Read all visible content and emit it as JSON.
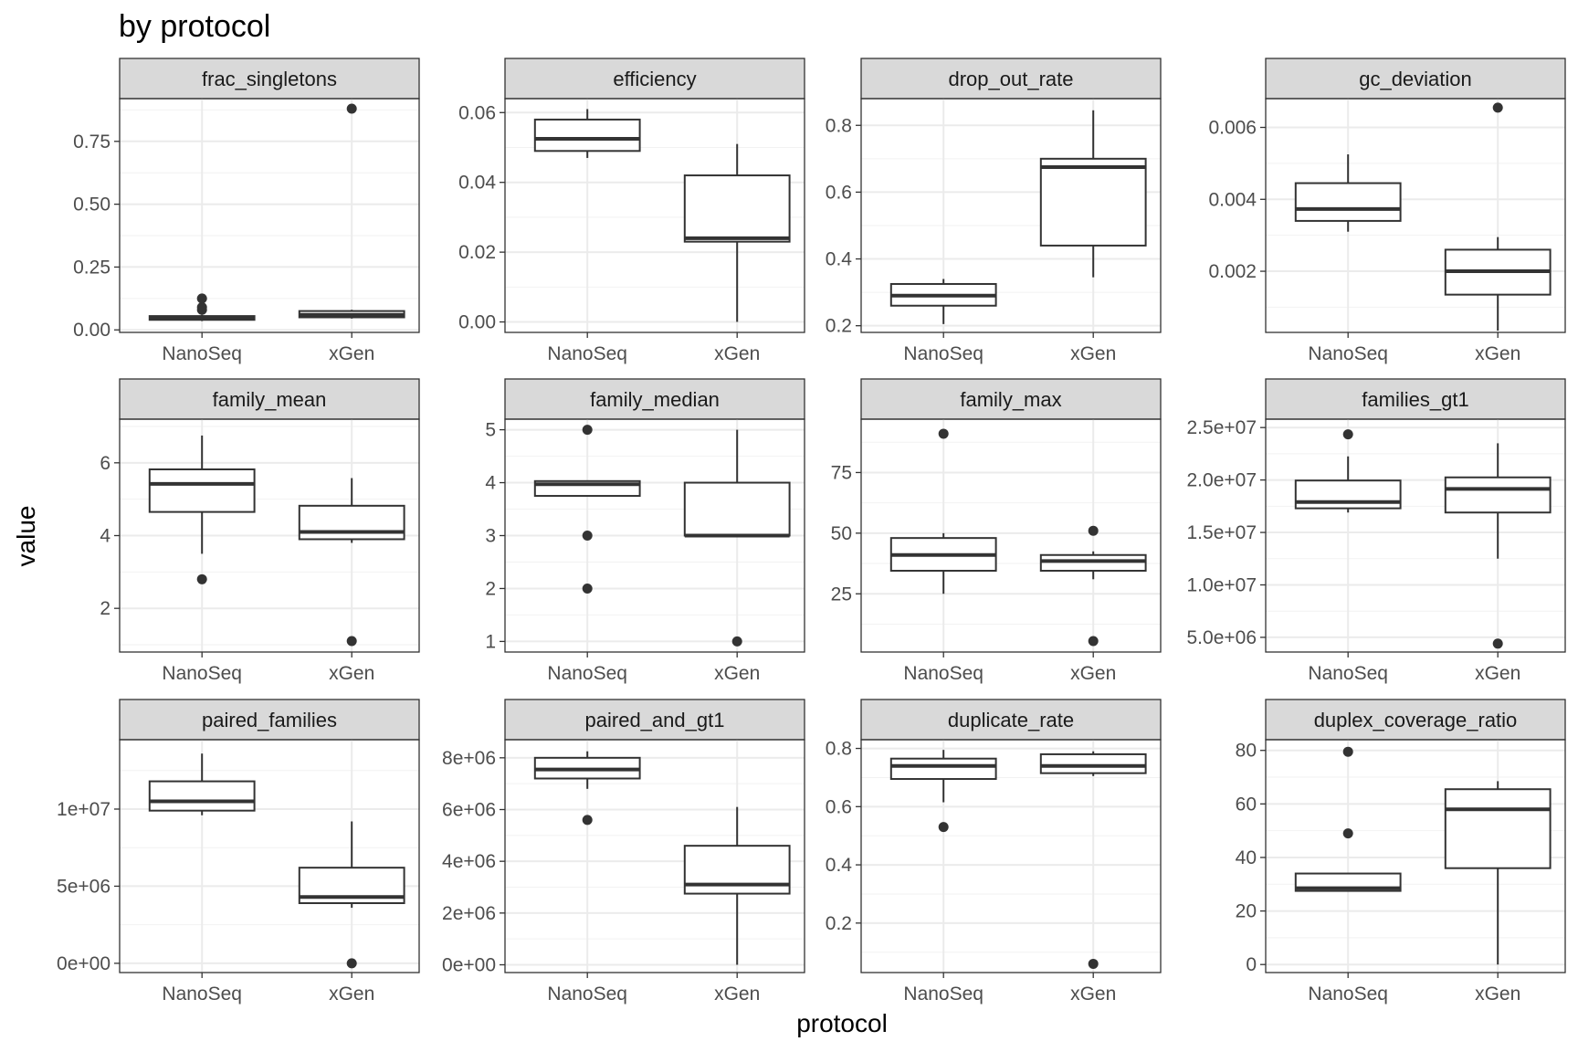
{
  "chart_data": {
    "type": "boxplot-facets",
    "title": "by protocol",
    "xlabel": "protocol",
    "ylabel": "value",
    "categories": [
      "NanoSeq",
      "xGen"
    ],
    "panels": [
      {
        "name": "frac_singletons",
        "ylim": [
          -0.01,
          0.92
        ],
        "yticks": [
          {
            "v": 0,
            "label": "0.00"
          },
          {
            "v": 0.25,
            "label": "0.25"
          },
          {
            "v": 0.5,
            "label": "0.50"
          },
          {
            "v": 0.75,
            "label": "0.75"
          }
        ],
        "boxes": [
          {
            "category": "NanoSeq",
            "lower_whisker": 0.035,
            "q1": 0.04,
            "median": 0.048,
            "q3": 0.055,
            "upper_whisker": 0.06,
            "outliers": [
              0.08,
              0.09,
              0.125
            ]
          },
          {
            "category": "xGen",
            "lower_whisker": 0.045,
            "q1": 0.05,
            "median": 0.06,
            "q3": 0.075,
            "upper_whisker": 0.08,
            "outliers": [
              0.88
            ]
          }
        ]
      },
      {
        "name": "efficiency",
        "ylim": [
          -0.003,
          0.064
        ],
        "yticks": [
          {
            "v": 0,
            "label": "0.00"
          },
          {
            "v": 0.02,
            "label": "0.02"
          },
          {
            "v": 0.04,
            "label": "0.04"
          },
          {
            "v": 0.06,
            "label": "0.06"
          }
        ],
        "boxes": [
          {
            "category": "NanoSeq",
            "lower_whisker": 0.047,
            "q1": 0.049,
            "median": 0.0525,
            "q3": 0.058,
            "upper_whisker": 0.061,
            "outliers": []
          },
          {
            "category": "xGen",
            "lower_whisker": 0.0,
            "q1": 0.023,
            "median": 0.024,
            "q3": 0.042,
            "upper_whisker": 0.051,
            "outliers": []
          }
        ]
      },
      {
        "name": "drop_out_rate",
        "ylim": [
          0.18,
          0.88
        ],
        "yticks": [
          {
            "v": 0.2,
            "label": "0.2"
          },
          {
            "v": 0.4,
            "label": "0.4"
          },
          {
            "v": 0.6,
            "label": "0.6"
          },
          {
            "v": 0.8,
            "label": "0.8"
          }
        ],
        "boxes": [
          {
            "category": "NanoSeq",
            "lower_whisker": 0.205,
            "q1": 0.26,
            "median": 0.29,
            "q3": 0.325,
            "upper_whisker": 0.34,
            "outliers": []
          },
          {
            "category": "xGen",
            "lower_whisker": 0.345,
            "q1": 0.44,
            "median": 0.675,
            "q3": 0.7,
            "upper_whisker": 0.845,
            "outliers": []
          }
        ]
      },
      {
        "name": "gc_deviation",
        "ylim": [
          0.0003,
          0.0068
        ],
        "yticks": [
          {
            "v": 0.002,
            "label": "0.002"
          },
          {
            "v": 0.004,
            "label": "0.004"
          },
          {
            "v": 0.006,
            "label": "0.006"
          }
        ],
        "boxes": [
          {
            "category": "NanoSeq",
            "lower_whisker": 0.0031,
            "q1": 0.0034,
            "median": 0.00373,
            "q3": 0.00445,
            "upper_whisker": 0.00525,
            "outliers": []
          },
          {
            "category": "xGen",
            "lower_whisker": 0.00035,
            "q1": 0.00135,
            "median": 0.002,
            "q3": 0.0026,
            "upper_whisker": 0.00295,
            "outliers": [
              0.00655
            ]
          }
        ]
      },
      {
        "name": "family_mean",
        "ylim": [
          0.8,
          7.2
        ],
        "yticks": [
          {
            "v": 2,
            "label": "2"
          },
          {
            "v": 4,
            "label": "4"
          },
          {
            "v": 6,
            "label": "6"
          }
        ],
        "boxes": [
          {
            "category": "NanoSeq",
            "lower_whisker": 3.5,
            "q1": 4.65,
            "median": 5.42,
            "q3": 5.82,
            "upper_whisker": 6.75,
            "outliers": [
              2.8
            ]
          },
          {
            "category": "xGen",
            "lower_whisker": 3.8,
            "q1": 3.9,
            "median": 4.1,
            "q3": 4.82,
            "upper_whisker": 5.58,
            "outliers": [
              1.1
            ]
          }
        ]
      },
      {
        "name": "family_median",
        "ylim": [
          0.8,
          5.2
        ],
        "yticks": [
          {
            "v": 1,
            "label": "1"
          },
          {
            "v": 2,
            "label": "2"
          },
          {
            "v": 3,
            "label": "3"
          },
          {
            "v": 4,
            "label": "4"
          },
          {
            "v": 5,
            "label": "5"
          }
        ],
        "boxes": [
          {
            "category": "NanoSeq",
            "lower_whisker": 3.75,
            "q1": 3.75,
            "median": 3.97,
            "q3": 4.03,
            "upper_whisker": 4.03,
            "outliers": [
              5,
              3,
              2
            ]
          },
          {
            "category": "xGen",
            "lower_whisker": 3.0,
            "q1": 3.0,
            "median": 3.0,
            "q3": 4.0,
            "upper_whisker": 5.0,
            "outliers": [
              1
            ]
          }
        ]
      },
      {
        "name": "family_max",
        "ylim": [
          1,
          97
        ],
        "yticks": [
          {
            "v": 25,
            "label": "25"
          },
          {
            "v": 50,
            "label": "50"
          },
          {
            "v": 75,
            "label": "75"
          }
        ],
        "boxes": [
          {
            "category": "NanoSeq",
            "lower_whisker": 25,
            "q1": 34.5,
            "median": 41,
            "q3": 48,
            "upper_whisker": 50,
            "outliers": [
              91
            ]
          },
          {
            "category": "xGen",
            "lower_whisker": 31,
            "q1": 34.5,
            "median": 38.5,
            "q3": 41,
            "upper_whisker": 42.5,
            "outliers": [
              51,
              5.5
            ]
          }
        ]
      },
      {
        "name": "families_gt1",
        "ylim": [
          3600000,
          25800000
        ],
        "yticks": [
          {
            "v": 5000000,
            "label": "5.0e+06"
          },
          {
            "v": 10000000,
            "label": "1.0e+07"
          },
          {
            "v": 15000000,
            "label": "1.5e+07"
          },
          {
            "v": 20000000,
            "label": "2.0e+07"
          },
          {
            "v": 25000000,
            "label": "2.5e+07"
          }
        ],
        "boxes": [
          {
            "category": "NanoSeq",
            "lower_whisker": 16900000,
            "q1": 17300000,
            "median": 17900000,
            "q3": 19950000,
            "upper_whisker": 22250000,
            "outliers": [
              24350000
            ]
          },
          {
            "category": "xGen",
            "lower_whisker": 12500000,
            "q1": 16900000,
            "median": 19150000,
            "q3": 20250000,
            "upper_whisker": 23500000,
            "outliers": [
              4400000
            ]
          }
        ]
      },
      {
        "name": "paired_families",
        "ylim": [
          -600000,
          14500000
        ],
        "yticks": [
          {
            "v": 0,
            "label": "0e+00"
          },
          {
            "v": 5000000,
            "label": "5e+06"
          },
          {
            "v": 10000000,
            "label": "1e+07"
          }
        ],
        "boxes": [
          {
            "category": "NanoSeq",
            "lower_whisker": 9600000,
            "q1": 9900000,
            "median": 10500000,
            "q3": 11800000,
            "upper_whisker": 13600000,
            "outliers": []
          },
          {
            "category": "xGen",
            "lower_whisker": 3600000,
            "q1": 3900000,
            "median": 4300000,
            "q3": 6200000,
            "upper_whisker": 9200000,
            "outliers": [
              0
            ]
          }
        ]
      },
      {
        "name": "paired_and_gt1",
        "ylim": [
          -300000,
          8700000
        ],
        "yticks": [
          {
            "v": 0,
            "label": "0e+00"
          },
          {
            "v": 2000000,
            "label": "2e+06"
          },
          {
            "v": 4000000,
            "label": "4e+06"
          },
          {
            "v": 6000000,
            "label": "6e+06"
          },
          {
            "v": 8000000,
            "label": "8e+06"
          }
        ],
        "boxes": [
          {
            "category": "NanoSeq",
            "lower_whisker": 6800000,
            "q1": 7200000,
            "median": 7550000,
            "q3": 8000000,
            "upper_whisker": 8250000,
            "outliers": [
              5600000
            ]
          },
          {
            "category": "xGen",
            "lower_whisker": 0,
            "q1": 2750000,
            "median": 3100000,
            "q3": 4600000,
            "upper_whisker": 6100000,
            "outliers": []
          }
        ]
      },
      {
        "name": "duplicate_rate",
        "ylim": [
          0.03,
          0.83
        ],
        "yticks": [
          {
            "v": 0.2,
            "label": "0.2"
          },
          {
            "v": 0.4,
            "label": "0.4"
          },
          {
            "v": 0.6,
            "label": "0.6"
          },
          {
            "v": 0.8,
            "label": "0.8"
          }
        ],
        "boxes": [
          {
            "category": "NanoSeq",
            "lower_whisker": 0.615,
            "q1": 0.695,
            "median": 0.74,
            "q3": 0.765,
            "upper_whisker": 0.795,
            "outliers": [
              0.53
            ]
          },
          {
            "category": "xGen",
            "lower_whisker": 0.705,
            "q1": 0.715,
            "median": 0.74,
            "q3": 0.78,
            "upper_whisker": 0.79,
            "outliers": [
              0.06
            ]
          }
        ]
      },
      {
        "name": "duplex_coverage_ratio",
        "ylim": [
          -3,
          84
        ],
        "yticks": [
          {
            "v": 0,
            "label": "0"
          },
          {
            "v": 20,
            "label": "20"
          },
          {
            "v": 40,
            "label": "40"
          },
          {
            "v": 60,
            "label": "60"
          },
          {
            "v": 80,
            "label": "80"
          }
        ],
        "boxes": [
          {
            "category": "NanoSeq",
            "lower_whisker": 27.5,
            "q1": 27.5,
            "median": 28.5,
            "q3": 34,
            "upper_whisker": 34,
            "outliers": [
              79.5,
              49
            ]
          },
          {
            "category": "xGen",
            "lower_whisker": 0,
            "q1": 36,
            "median": 58,
            "q3": 65.5,
            "upper_whisker": 68.5,
            "outliers": []
          }
        ]
      }
    ]
  }
}
